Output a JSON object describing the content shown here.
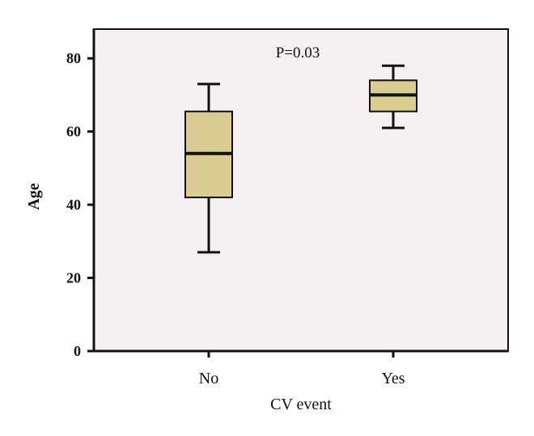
{
  "chart_data": {
    "type": "boxplot",
    "title": "",
    "annotation": "P=0.03",
    "xlabel": "CV event",
    "ylabel": "Age",
    "categories": [
      "No",
      "Yes"
    ],
    "yticks": [
      0,
      20,
      40,
      60,
      80
    ],
    "ylim": [
      0,
      88
    ],
    "grid": false,
    "boxes": [
      {
        "category": "No",
        "min": 27,
        "q1": 42,
        "median": 54,
        "q3": 65.5,
        "max": 73
      },
      {
        "category": "Yes",
        "min": 61,
        "q1": 65.5,
        "median": 70,
        "q3": 74,
        "max": 78
      }
    ],
    "colors": {
      "box_fill": "#d8cc92",
      "plot_background": "#f6eff1",
      "line": "#111111"
    }
  }
}
